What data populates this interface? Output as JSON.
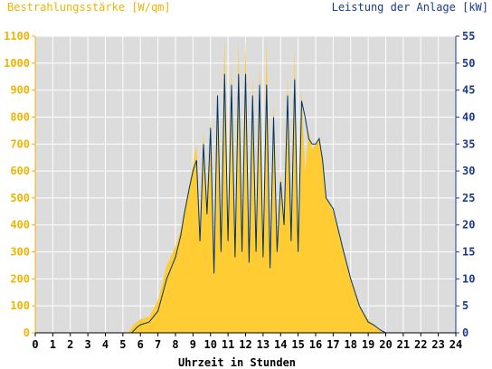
{
  "chart_data": {
    "type": "area",
    "title_left": "Bestrahlungsstärke [W/qm]",
    "title_right": "Leistung der Anlage [kW]",
    "xlabel": "Uhrzeit in Stunden",
    "xlim": [
      0,
      24
    ],
    "x_ticks": [
      "0",
      "1",
      "2",
      "3",
      "4",
      "5",
      "6",
      "7",
      "8",
      "9",
      "10",
      "11",
      "12",
      "13",
      "14",
      "15",
      "16",
      "17",
      "18",
      "19",
      "20",
      "21",
      "22",
      "23",
      "24"
    ],
    "y_left_lim": [
      0,
      1100
    ],
    "y_left_ticks": [
      "0",
      "100",
      "200",
      "300",
      "400",
      "500",
      "600",
      "700",
      "800",
      "900",
      "1000",
      "1100"
    ],
    "y_right_lim": [
      0,
      55
    ],
    "y_right_ticks": [
      "0",
      "5",
      "10",
      "15",
      "20",
      "25",
      "30",
      "35",
      "40",
      "45",
      "50",
      "55"
    ],
    "grid": true,
    "series": [
      {
        "name": "Bestrahlungsstärke",
        "axis": "left",
        "kind": "area",
        "color": "#ffcc33",
        "x": [
          0,
          5.3,
          5.6,
          6.0,
          6.5,
          7.0,
          7.5,
          8.0,
          8.3,
          8.5,
          8.8,
          9.0,
          9.2,
          9.4,
          9.6,
          9.8,
          10.0,
          10.2,
          10.4,
          10.6,
          10.8,
          11.0,
          11.2,
          11.4,
          11.6,
          11.8,
          12.0,
          12.2,
          12.4,
          12.6,
          12.8,
          13.0,
          13.2,
          13.4,
          13.6,
          13.8,
          14.0,
          14.2,
          14.4,
          14.6,
          14.8,
          15.0,
          15.2,
          15.4,
          15.6,
          15.8,
          16.0,
          16.2,
          16.4,
          16.6,
          16.8,
          17.0,
          17.3,
          17.6,
          18.0,
          18.5,
          19.0,
          19.3,
          19.5,
          19.7,
          20.0,
          24
        ],
        "y": [
          0,
          0,
          30,
          50,
          60,
          120,
          250,
          320,
          380,
          450,
          550,
          620,
          700,
          350,
          750,
          450,
          800,
          250,
          900,
          300,
          1100,
          350,
          1000,
          280,
          1080,
          300,
          1100,
          250,
          950,
          300,
          1000,
          280,
          1100,
          250,
          850,
          300,
          600,
          400,
          950,
          350,
          1050,
          300,
          900,
          600,
          750,
          680,
          700,
          720,
          650,
          500,
          480,
          450,
          380,
          300,
          200,
          100,
          50,
          30,
          20,
          10,
          0,
          0
        ]
      },
      {
        "name": "Leistung der Anlage",
        "axis": "right",
        "kind": "line",
        "color": "#003366",
        "x": [
          0,
          5.5,
          5.8,
          6.0,
          6.5,
          7.0,
          7.5,
          8.0,
          8.3,
          8.5,
          8.8,
          9.0,
          9.2,
          9.4,
          9.6,
          9.8,
          10.0,
          10.2,
          10.4,
          10.6,
          10.8,
          11.0,
          11.2,
          11.4,
          11.6,
          11.8,
          12.0,
          12.2,
          12.4,
          12.6,
          12.8,
          13.0,
          13.2,
          13.4,
          13.6,
          13.8,
          14.0,
          14.2,
          14.4,
          14.6,
          14.8,
          15.0,
          15.2,
          15.4,
          15.6,
          15.8,
          16.0,
          16.2,
          16.4,
          16.6,
          16.8,
          17.0,
          17.3,
          17.6,
          18.0,
          18.5,
          19.0,
          19.3,
          19.5,
          19.7,
          20.0,
          24
        ],
        "y": [
          0,
          0,
          1,
          1.5,
          2,
          4,
          10,
          14,
          18,
          22,
          27,
          30,
          32,
          17,
          35,
          22,
          38,
          11,
          44,
          15,
          48,
          17,
          46,
          14,
          48,
          15,
          48,
          13,
          44,
          15,
          46,
          14,
          46,
          12,
          40,
          15,
          28,
          20,
          44,
          17,
          47,
          15,
          43,
          40,
          36,
          35,
          35,
          36,
          32,
          25,
          24,
          23,
          19,
          15,
          10,
          5,
          2,
          1.5,
          1,
          0.5,
          0,
          0
        ]
      }
    ]
  }
}
